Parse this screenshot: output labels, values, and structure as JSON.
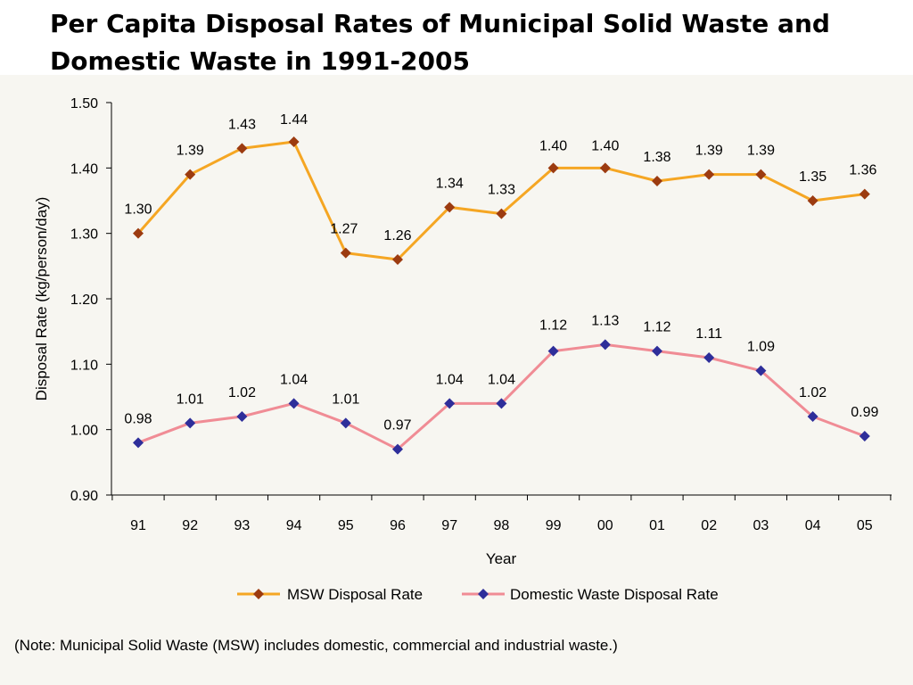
{
  "title": "Per Capita Disposal Rates of Municipal Solid Waste and Domestic Waste in 1991-2005",
  "note": "(Note: Municipal Solid Waste (MSW) includes domestic, commercial and industrial waste.)",
  "colors": {
    "msw_line": "#f5a623",
    "msw_marker": "#9c3b10",
    "domestic_line": "#f08c95",
    "domestic_marker": "#2e2e9a",
    "panel_bg": "#f7f6f1"
  },
  "chart_data": {
    "type": "line",
    "categories": [
      "91",
      "92",
      "93",
      "94",
      "95",
      "96",
      "97",
      "98",
      "99",
      "00",
      "01",
      "02",
      "03",
      "04",
      "05"
    ],
    "series": [
      {
        "name": "MSW Disposal Rate",
        "values": [
          1.3,
          1.39,
          1.43,
          1.44,
          1.27,
          1.26,
          1.34,
          1.33,
          1.4,
          1.4,
          1.38,
          1.39,
          1.39,
          1.35,
          1.36
        ],
        "labels": [
          "1.30",
          "1.39",
          "1.43",
          "1.44",
          "1.27",
          "1.26",
          "1.34",
          "1.33",
          "1.40",
          "1.40",
          "1.38",
          "1.39",
          "1.39",
          "1.35",
          "1.36"
        ]
      },
      {
        "name": "Domestic Waste Disposal Rate",
        "values": [
          0.98,
          1.01,
          1.02,
          1.04,
          1.01,
          0.97,
          1.04,
          1.04,
          1.12,
          1.13,
          1.12,
          1.11,
          1.09,
          1.02,
          0.99
        ],
        "labels": [
          "0.98",
          "1.01",
          "1.02",
          "1.04",
          "1.01",
          "0.97",
          "1.04",
          "1.04",
          "1.12",
          "1.13",
          "1.12",
          "1.11",
          "1.09",
          "1.02",
          "0.99"
        ]
      }
    ],
    "ylim": [
      0.9,
      1.5
    ],
    "yticks": [
      "0.90",
      "1.00",
      "1.10",
      "1.20",
      "1.30",
      "1.40",
      "1.50"
    ],
    "xlabel": "Year",
    "ylabel": "Disposal Rate (kg/person/day)",
    "grid": false,
    "legend_position": "bottom"
  }
}
